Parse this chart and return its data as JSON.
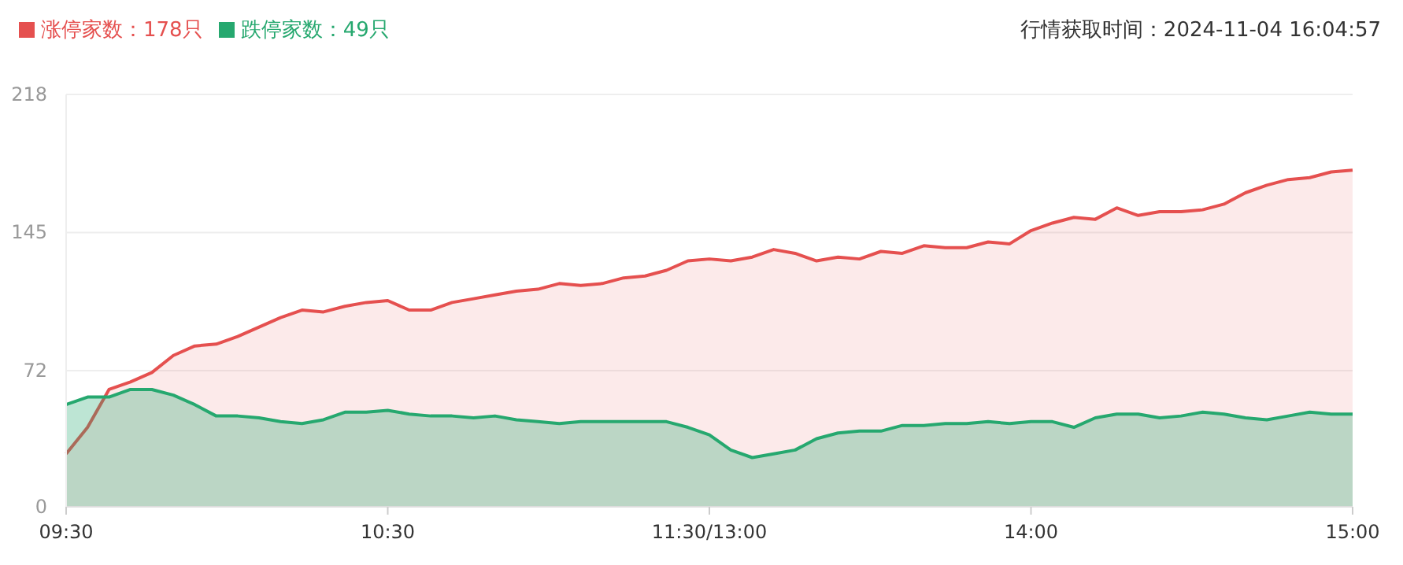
{
  "chart_data": {
    "type": "area",
    "annotations": [
      "行情获取时间：2024-11-04 16:04:57"
    ],
    "categories": [
      "09:30",
      null,
      null,
      null,
      null,
      null,
      null,
      null,
      null,
      null,
      null,
      null,
      null,
      null,
      null,
      "10:30",
      null,
      null,
      null,
      null,
      null,
      null,
      null,
      null,
      null,
      null,
      null,
      null,
      null,
      null,
      "11:30/13:00",
      null,
      null,
      null,
      null,
      null,
      null,
      null,
      null,
      null,
      null,
      null,
      null,
      null,
      null,
      "14:00",
      null,
      null,
      null,
      null,
      null,
      null,
      null,
      null,
      null,
      null,
      null,
      null,
      null,
      null,
      "15:00"
    ],
    "ylim": [
      0,
      218
    ],
    "yticks": [
      0,
      72,
      145,
      218
    ],
    "grid": "y",
    "legend": "top left",
    "line_style": "solid",
    "series": [
      {
        "name": "涨停家数：178只",
        "color": "#e5504f",
        "values": [
          28,
          42,
          62,
          66,
          71,
          80,
          85,
          86,
          90,
          95,
          100,
          104,
          103,
          106,
          108,
          109,
          104,
          104,
          108,
          110,
          112,
          114,
          115,
          118,
          117,
          118,
          121,
          122,
          125,
          130,
          131,
          130,
          132,
          136,
          134,
          130,
          132,
          131,
          135,
          134,
          138,
          137,
          137,
          140,
          139,
          146,
          150,
          153,
          152,
          158,
          154,
          156,
          156,
          157,
          160,
          166,
          170,
          173,
          174,
          177,
          178
        ]
      },
      {
        "name": "跌停家数：49只",
        "color": "#26a86f",
        "values": [
          54,
          58,
          58,
          62,
          62,
          59,
          54,
          48,
          48,
          47,
          45,
          44,
          46,
          50,
          50,
          51,
          49,
          48,
          48,
          47,
          48,
          46,
          45,
          44,
          45,
          45,
          45,
          45,
          45,
          42,
          38,
          30,
          26,
          28,
          30,
          36,
          39,
          40,
          40,
          43,
          43,
          44,
          44,
          45,
          44,
          45,
          45,
          42,
          47,
          49,
          49,
          47,
          48,
          50,
          49,
          47,
          46,
          48,
          50,
          49,
          49
        ]
      }
    ]
  }
}
